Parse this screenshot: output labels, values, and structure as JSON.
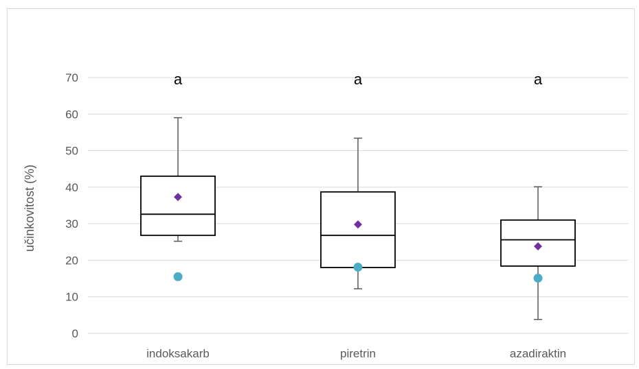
{
  "chart_data": {
    "type": "boxplot",
    "title": "",
    "xlabel": "",
    "ylabel": "učinkovitost (%)",
    "ylim": [
      0,
      70
    ],
    "yticks": [
      0,
      10,
      20,
      30,
      40,
      50,
      60,
      70
    ],
    "yticklabels": [
      "0",
      "10",
      "20",
      "30",
      "40",
      "50",
      "60",
      "70"
    ],
    "grid": true,
    "legend": "none",
    "categories": [
      "indoksakarb",
      "piretrin",
      "azadiraktin"
    ],
    "boxes": [
      {
        "whisker_low": 25.2,
        "q1": 26.8,
        "median": 32.6,
        "q3": 43.0,
        "whisker_high": 59.0,
        "mean": 37.3,
        "outlier": 15.5,
        "letter": "a"
      },
      {
        "whisker_low": 12.2,
        "q1": 18.0,
        "median": 26.8,
        "q3": 38.7,
        "whisker_high": 53.4,
        "mean": 29.8,
        "outlier": 18.1,
        "letter": "a"
      },
      {
        "whisker_low": 3.8,
        "q1": 18.4,
        "median": 25.6,
        "q3": 31.0,
        "whisker_high": 40.1,
        "mean": 23.8,
        "outlier": 15.1,
        "letter": "a"
      }
    ],
    "colors": {
      "box": "#000000",
      "whisker": "#595959",
      "mean": "#7030a0",
      "outlier": "#4bacc6",
      "grid": "#d9d9d9",
      "text": "#595959"
    }
  }
}
